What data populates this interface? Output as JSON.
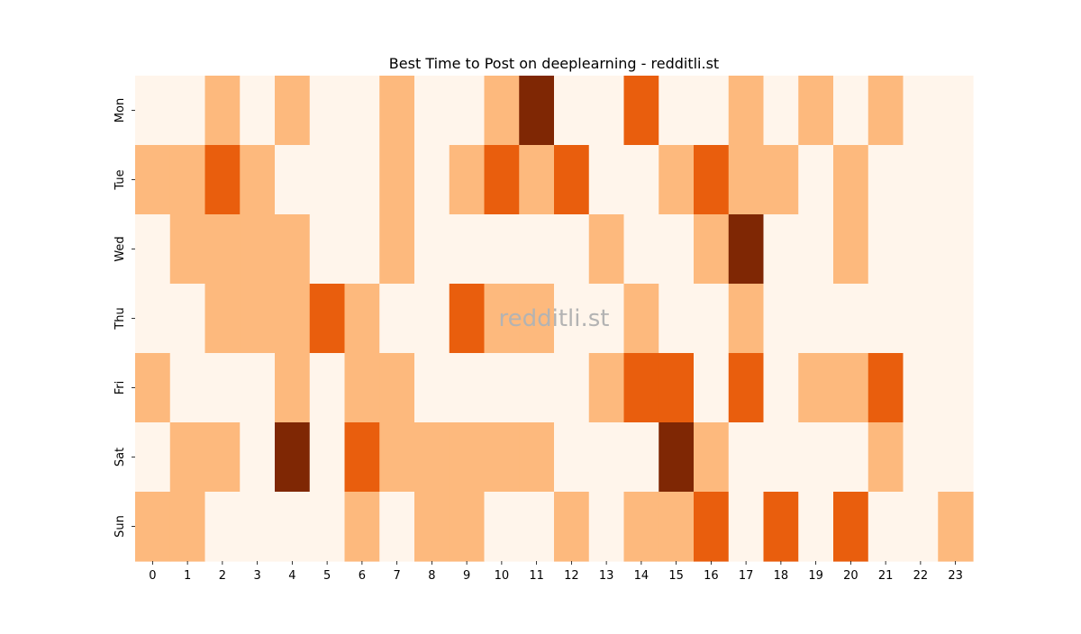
{
  "chart_data": {
    "type": "heatmap",
    "title": "Best Time to Post on deeplearning - redditli.st",
    "watermark": "redditli.st",
    "x_categories": [
      "0",
      "1",
      "2",
      "3",
      "4",
      "5",
      "6",
      "7",
      "8",
      "9",
      "10",
      "11",
      "12",
      "13",
      "14",
      "15",
      "16",
      "17",
      "18",
      "19",
      "20",
      "21",
      "22",
      "23"
    ],
    "y_categories": [
      "Mon",
      "Tue",
      "Wed",
      "Thu",
      "Fri",
      "Sat",
      "Sun"
    ],
    "values": [
      [
        0,
        0,
        1,
        0,
        1,
        0,
        0,
        1,
        0,
        0,
        1,
        3,
        0,
        0,
        2,
        0,
        0,
        1,
        0,
        1,
        0,
        1,
        0,
        0
      ],
      [
        1,
        1,
        2,
        1,
        0,
        0,
        0,
        1,
        0,
        1,
        2,
        1,
        2,
        0,
        0,
        1,
        2,
        1,
        1,
        0,
        1,
        0,
        0,
        0
      ],
      [
        0,
        1,
        1,
        1,
        1,
        0,
        0,
        1,
        0,
        0,
        0,
        0,
        0,
        1,
        0,
        0,
        1,
        3,
        0,
        0,
        1,
        0,
        0,
        0
      ],
      [
        0,
        0,
        1,
        1,
        1,
        2,
        1,
        0,
        0,
        2,
        1,
        1,
        0,
        0,
        1,
        0,
        0,
        1,
        0,
        0,
        0,
        0,
        0,
        0
      ],
      [
        1,
        0,
        0,
        0,
        1,
        0,
        1,
        1,
        0,
        0,
        0,
        0,
        0,
        1,
        2,
        2,
        0,
        2,
        0,
        1,
        1,
        2,
        0,
        0
      ],
      [
        0,
        1,
        1,
        0,
        3,
        0,
        2,
        1,
        1,
        1,
        1,
        1,
        0,
        0,
        0,
        3,
        1,
        0,
        0,
        0,
        0,
        1,
        0,
        0
      ],
      [
        1,
        1,
        0,
        0,
        0,
        0,
        1,
        0,
        1,
        1,
        0,
        0,
        1,
        0,
        1,
        1,
        2,
        0,
        2,
        0,
        2,
        0,
        0,
        1
      ]
    ],
    "value_range": [
      0,
      3
    ],
    "colormap": [
      "#fff5eb",
      "#fdb97d",
      "#e95e0d",
      "#7f2704"
    ],
    "watermark_color": "#b3b3b3",
    "colorbar": false,
    "grid": false
  }
}
